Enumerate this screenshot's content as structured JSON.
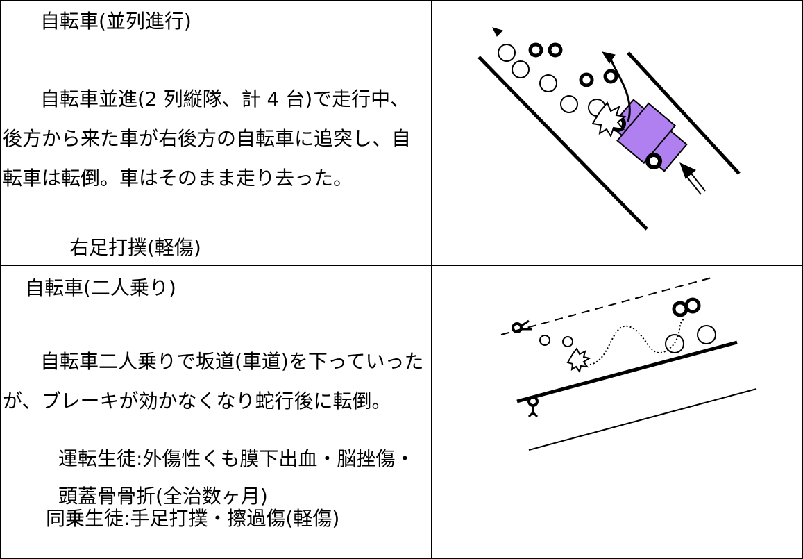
{
  "rows": [
    {
      "title": "自転車(並列進行)",
      "description": "自転車並進(2 列縦隊、計 4 台)で走行中、後方から来た車が右後方の自転車に追突し、自転車は転倒。車はそのまま走り去った。",
      "injuries": [
        "右足打撲(軽傷)"
      ]
    },
    {
      "title": "自転車(二人乗り)",
      "description": "自転車二人乗りで坂道(車道)を下っていったが、ブレーキが効かなくなり蛇行後に転倒。",
      "injuries": [
        "運転生徒:外傷性くも膜下出血・脳挫傷・頭蓋骨骨折(全治数ヶ月)",
        "同乗生徒:手足打撲・擦過傷(軽傷)"
      ]
    }
  ]
}
